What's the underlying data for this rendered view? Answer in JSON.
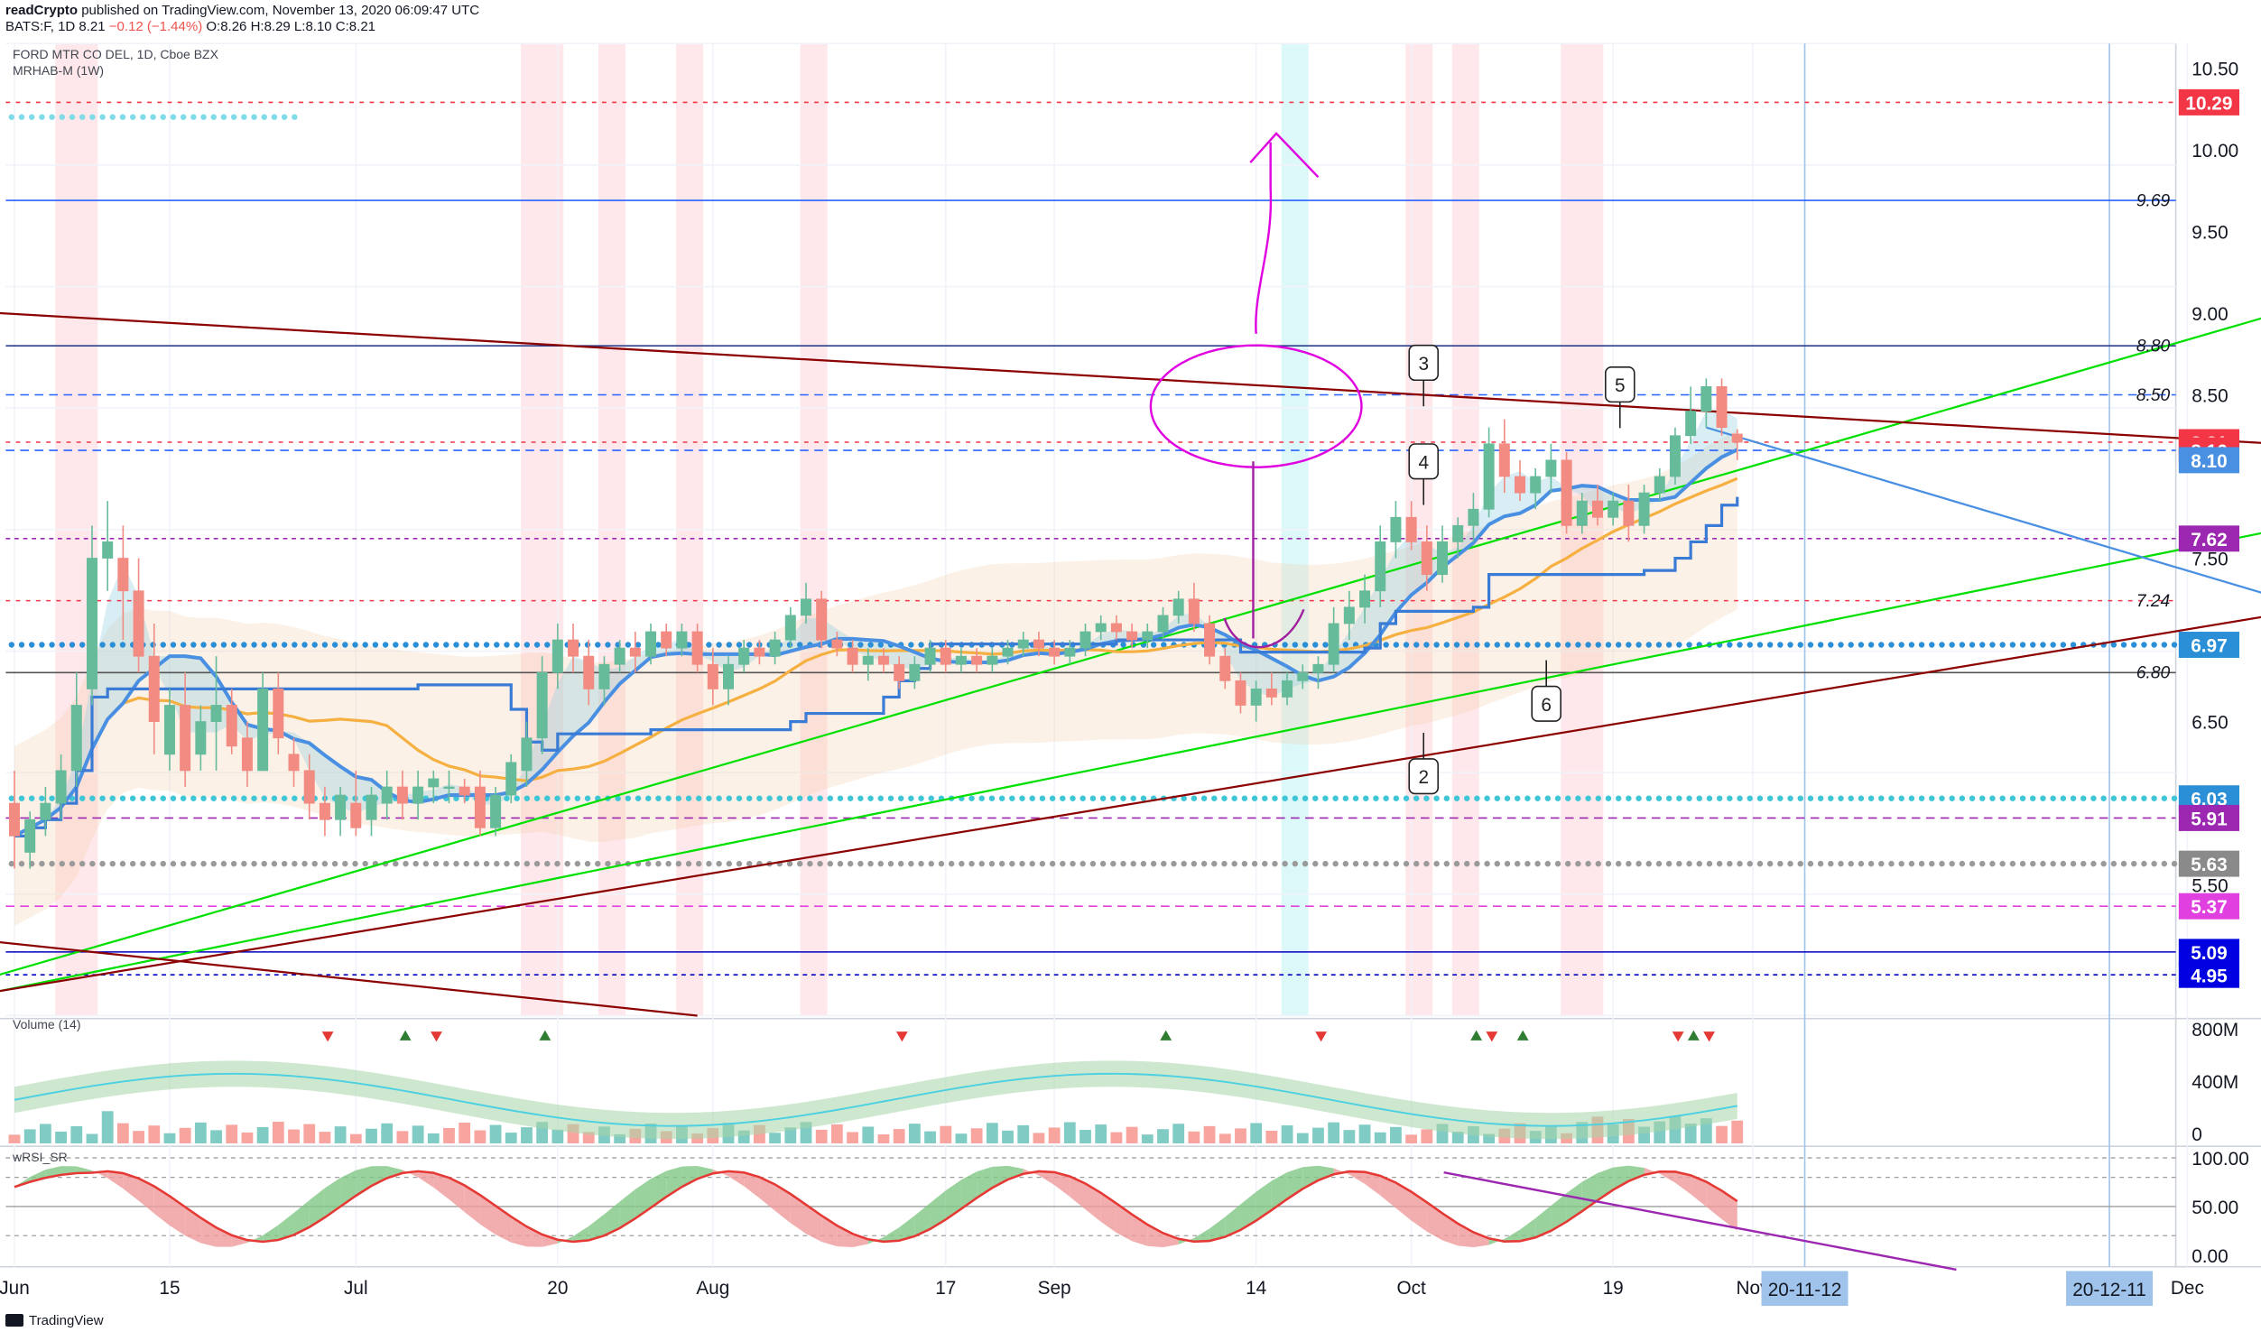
{
  "header": {
    "publisher": "readCrypto",
    "published_text": "published on TradingView.com, November 13, 2020 06:09:47 UTC",
    "symbol": "BATS:F, 1D",
    "last_price": "8.21",
    "change": "−0.12 (−1.44%)",
    "ohlc": "O:8.26 H:8.29 L:8.10 C:8.21"
  },
  "studies": {
    "main": "FORD MTR CO DEL, 1D, Cboe BZX",
    "indicator": "MRHAB-M (1W)",
    "volume": "Volume (14)",
    "rsi": "wRSI_SR"
  },
  "footer": {
    "brand": "TradingView",
    "icon": "tradingview-logo-icon"
  },
  "colors": {
    "up": "#26a69a",
    "down": "#ef5350",
    "blue": "#4a90e2",
    "green_line": "#00e000",
    "maroon_line": "#8b0000",
    "magenta": "#e000e0",
    "purple": "#9c27b0",
    "orange": "#f5b041"
  },
  "chart_data": {
    "type": "candlestick",
    "price_axis": {
      "ticks": [
        "10.50",
        "10.00",
        "9.50",
        "9.00",
        "8.50",
        "7.50",
        "6.50",
        "5.50"
      ],
      "range": [
        4.7,
        10.65
      ]
    },
    "price_labels": [
      {
        "value": 10.29,
        "text": "10.29",
        "bg": "#f23645",
        "fg": "#ffffff"
      },
      {
        "value": 8.21,
        "text": "8.21",
        "bg": "#f23645",
        "fg": "#ffffff"
      },
      {
        "value": 8.16,
        "text": "8.16",
        "bg": "#f23645",
        "fg": "#ffffff"
      },
      {
        "value": 8.1,
        "text": "8.10",
        "bg": "#4a90e2",
        "fg": "#ffffff"
      },
      {
        "value": 7.62,
        "text": "7.62",
        "bg": "#9c27b0",
        "fg": "#ffffff"
      },
      {
        "value": 6.97,
        "text": "6.97",
        "bg": "#2a8fd6",
        "fg": "#ffffff"
      },
      {
        "value": 6.03,
        "text": "6.03",
        "bg": "#2a8fd6",
        "fg": "#ffffff"
      },
      {
        "value": 5.91,
        "text": "5.91",
        "bg": "#9c27b0",
        "fg": "#ffffff"
      },
      {
        "value": 5.63,
        "text": "5.63",
        "bg": "#8a8a8a",
        "fg": "#ffffff"
      },
      {
        "value": 5.37,
        "text": "5.37",
        "bg": "#e040e0",
        "fg": "#ffffff"
      },
      {
        "value": 5.09,
        "text": "5.09",
        "bg": "#0000e0",
        "fg": "#ffffff"
      },
      {
        "value": 4.95,
        "text": "4.95",
        "bg": "#0000e0",
        "fg": "#ffffff"
      }
    ],
    "level_texts": [
      {
        "value": 9.69,
        "text": "9.69"
      },
      {
        "value": 8.8,
        "text": "8.80"
      },
      {
        "value": 8.5,
        "text": "8.50"
      },
      {
        "value": 7.24,
        "text": "7.24"
      },
      {
        "value": 6.8,
        "text": "6.80"
      }
    ],
    "hlines": [
      {
        "value": 10.29,
        "color": "#f23645",
        "dash": "3,4"
      },
      {
        "value": 9.69,
        "color": "#2962ff",
        "dash": ""
      },
      {
        "value": 8.8,
        "color": "#2c3e8c",
        "dash": ""
      },
      {
        "value": 8.5,
        "color": "#2962ff",
        "dash": "6,4"
      },
      {
        "value": 8.21,
        "color": "#f23645",
        "dash": "3,4"
      },
      {
        "value": 8.16,
        "color": "#2962ff",
        "dash": "6,4"
      },
      {
        "value": 7.62,
        "color": "#9c27b0",
        "dash": "3,3"
      },
      {
        "value": 7.24,
        "color": "#f23645",
        "dash": "3,4"
      },
      {
        "value": 6.97,
        "color": "#2a8fd6",
        "dash": "2,6",
        "dots": true
      },
      {
        "value": 6.8,
        "color": "#555555",
        "dash": ""
      },
      {
        "value": 6.03,
        "color": "#3ec6d6",
        "dash": "2,6",
        "dots": true
      },
      {
        "value": 5.91,
        "color": "#9c27b0",
        "dash": "6,4"
      },
      {
        "value": 5.63,
        "color": "#9a9a9a",
        "dash": "2,6",
        "dots": true
      },
      {
        "value": 5.37,
        "color": "#e040e0",
        "dash": "6,4"
      },
      {
        "value": 5.09,
        "color": "#0000c0",
        "dash": ""
      },
      {
        "value": 4.95,
        "color": "#0000c0",
        "dash": "3,3"
      }
    ],
    "time_axis": {
      "labels": [
        "Jun",
        "15",
        "Jul",
        "20",
        "Aug",
        "17",
        "Sep",
        "14",
        "Oct",
        "19",
        "Nov",
        "Dec"
      ],
      "positions_day_index": [
        0,
        10,
        22,
        35,
        45,
        60,
        67,
        80,
        90,
        103,
        112,
        140
      ],
      "highlighted": [
        "20-11-12",
        "20-12-11"
      ]
    },
    "trendlines": [
      {
        "name": "green-upper",
        "from": [
          -1,
          4.95
        ],
        "to": [
          155,
          9.25
        ],
        "color": "#00e000"
      },
      {
        "name": "green-lower",
        "from": [
          -1,
          4.85
        ],
        "to": [
          155,
          7.85
        ],
        "color": "#00e000"
      },
      {
        "name": "maroon-upper",
        "from": [
          -1,
          9.0
        ],
        "to": [
          155,
          8.15
        ],
        "color": "#8b0000"
      },
      {
        "name": "maroon-lower",
        "from": [
          -1,
          4.85
        ],
        "to": [
          155,
          7.3
        ],
        "color": "#8b0000"
      },
      {
        "name": "maroon-short",
        "from": [
          -1,
          5.15
        ],
        "to": [
          44,
          4.7
        ],
        "color": "#8b0000"
      },
      {
        "name": "blue-falling",
        "from": [
          109,
          8.3
        ],
        "to": [
          155,
          7.0
        ],
        "color": "#4a90e2"
      }
    ],
    "callouts": [
      "2",
      "3",
      "4",
      "5",
      "6"
    ],
    "candles": [
      [
        6.0,
        6.2,
        5.6,
        5.8
      ],
      [
        5.7,
        5.95,
        5.6,
        5.9
      ],
      [
        5.9,
        6.1,
        5.8,
        6.0
      ],
      [
        6.0,
        6.3,
        5.9,
        6.2
      ],
      [
        6.2,
        6.8,
        6.1,
        6.6
      ],
      [
        6.7,
        7.7,
        6.6,
        7.5
      ],
      [
        7.5,
        7.85,
        7.3,
        7.6
      ],
      [
        7.5,
        7.7,
        7.0,
        7.3
      ],
      [
        7.3,
        7.5,
        6.8,
        6.9
      ],
      [
        6.9,
        7.1,
        6.3,
        6.5
      ],
      [
        6.3,
        6.7,
        6.2,
        6.6
      ],
      [
        6.6,
        6.8,
        6.1,
        6.2
      ],
      [
        6.3,
        6.6,
        6.2,
        6.5
      ],
      [
        6.5,
        6.9,
        6.2,
        6.6
      ],
      [
        6.6,
        6.7,
        6.3,
        6.35
      ],
      [
        6.4,
        6.5,
        6.1,
        6.2
      ],
      [
        6.2,
        6.8,
        6.2,
        6.7
      ],
      [
        6.7,
        6.8,
        6.3,
        6.4
      ],
      [
        6.3,
        6.4,
        6.1,
        6.2
      ],
      [
        6.2,
        6.3,
        5.9,
        6.0
      ],
      [
        6.0,
        6.1,
        5.8,
        5.9
      ],
      [
        5.9,
        6.1,
        5.8,
        6.05
      ],
      [
        6.0,
        6.2,
        5.8,
        5.85
      ],
      [
        5.9,
        6.1,
        5.8,
        6.05
      ],
      [
        6.0,
        6.2,
        5.9,
        6.1
      ],
      [
        6.1,
        6.2,
        5.9,
        6.0
      ],
      [
        6.0,
        6.2,
        5.9,
        6.1
      ],
      [
        6.1,
        6.2,
        6.0,
        6.15
      ],
      [
        6.1,
        6.2,
        6.0,
        6.1
      ],
      [
        6.1,
        6.15,
        6.0,
        6.05
      ],
      [
        6.1,
        6.2,
        5.8,
        5.85
      ],
      [
        5.85,
        6.1,
        5.8,
        6.05
      ],
      [
        6.05,
        6.3,
        6.0,
        6.25
      ],
      [
        6.2,
        6.5,
        6.1,
        6.4
      ],
      [
        6.4,
        6.9,
        6.3,
        6.8
      ],
      [
        6.8,
        7.1,
        6.7,
        7.0
      ],
      [
        7.0,
        7.1,
        6.8,
        6.9
      ],
      [
        6.9,
        7.0,
        6.6,
        6.7
      ],
      [
        6.7,
        6.9,
        6.6,
        6.85
      ],
      [
        6.85,
        7.0,
        6.8,
        6.95
      ],
      [
        6.95,
        7.05,
        6.8,
        6.9
      ],
      [
        6.9,
        7.1,
        6.85,
        7.05
      ],
      [
        7.05,
        7.1,
        6.9,
        6.95
      ],
      [
        6.95,
        7.1,
        6.9,
        7.05
      ],
      [
        7.05,
        7.1,
        6.8,
        6.85
      ],
      [
        6.85,
        6.95,
        6.6,
        6.7
      ],
      [
        6.7,
        6.9,
        6.6,
        6.85
      ],
      [
        6.85,
        7.0,
        6.8,
        6.95
      ],
      [
        6.95,
        7.0,
        6.85,
        6.9
      ],
      [
        6.9,
        7.05,
        6.85,
        7.0
      ],
      [
        7.0,
        7.2,
        6.95,
        7.15
      ],
      [
        7.15,
        7.35,
        7.1,
        7.25
      ],
      [
        7.25,
        7.3,
        6.95,
        7.0
      ],
      [
        7.0,
        7.05,
        6.9,
        6.95
      ],
      [
        6.95,
        7.0,
        6.8,
        6.85
      ],
      [
        6.85,
        6.95,
        6.75,
        6.9
      ],
      [
        6.9,
        6.95,
        6.8,
        6.85
      ],
      [
        6.85,
        6.9,
        6.7,
        6.75
      ],
      [
        6.75,
        6.9,
        6.7,
        6.85
      ],
      [
        6.85,
        7.0,
        6.8,
        6.95
      ],
      [
        6.95,
        7.0,
        6.8,
        6.85
      ],
      [
        6.85,
        6.95,
        6.8,
        6.9
      ],
      [
        6.9,
        6.95,
        6.8,
        6.85
      ],
      [
        6.85,
        6.95,
        6.8,
        6.9
      ],
      [
        6.9,
        7.0,
        6.85,
        6.95
      ],
      [
        6.95,
        7.05,
        6.9,
        7.0
      ],
      [
        7.0,
        7.05,
        6.9,
        6.95
      ],
      [
        6.95,
        7.0,
        6.85,
        6.9
      ],
      [
        6.9,
        7.0,
        6.85,
        6.95
      ],
      [
        6.95,
        7.1,
        6.9,
        7.05
      ],
      [
        7.05,
        7.15,
        7.0,
        7.1
      ],
      [
        7.1,
        7.15,
        7.0,
        7.05
      ],
      [
        7.05,
        7.1,
        6.95,
        7.0
      ],
      [
        7.0,
        7.1,
        6.95,
        7.05
      ],
      [
        7.05,
        7.2,
        7.0,
        7.15
      ],
      [
        7.15,
        7.3,
        7.1,
        7.25
      ],
      [
        7.25,
        7.35,
        7.05,
        7.1
      ],
      [
        7.1,
        7.15,
        6.85,
        6.9
      ],
      [
        6.9,
        6.95,
        6.7,
        6.75
      ],
      [
        6.75,
        6.8,
        6.55,
        6.6
      ],
      [
        6.6,
        6.75,
        6.5,
        6.7
      ],
      [
        6.7,
        6.8,
        6.6,
        6.65
      ],
      [
        6.65,
        6.8,
        6.6,
        6.75
      ],
      [
        6.75,
        6.85,
        6.7,
        6.8
      ],
      [
        6.8,
        6.9,
        6.7,
        6.85
      ],
      [
        6.85,
        7.2,
        6.8,
        7.1
      ],
      [
        7.1,
        7.3,
        7.0,
        7.2
      ],
      [
        7.2,
        7.4,
        7.1,
        7.3
      ],
      [
        7.3,
        7.7,
        7.2,
        7.6
      ],
      [
        7.6,
        7.85,
        7.5,
        7.75
      ],
      [
        7.75,
        7.85,
        7.55,
        7.6
      ],
      [
        7.6,
        7.7,
        7.3,
        7.4
      ],
      [
        7.4,
        7.7,
        7.35,
        7.6
      ],
      [
        7.6,
        7.75,
        7.5,
        7.7
      ],
      [
        7.7,
        7.9,
        7.6,
        7.8
      ],
      [
        7.8,
        8.3,
        7.75,
        8.2
      ],
      [
        8.2,
        8.35,
        7.9,
        8.0
      ],
      [
        8.0,
        8.1,
        7.85,
        7.9
      ],
      [
        7.9,
        8.05,
        7.8,
        8.0
      ],
      [
        8.0,
        8.2,
        7.9,
        8.1
      ],
      [
        8.1,
        8.15,
        7.65,
        7.7
      ],
      [
        7.7,
        7.9,
        7.65,
        7.85
      ],
      [
        7.85,
        7.95,
        7.7,
        7.75
      ],
      [
        7.75,
        7.9,
        7.7,
        7.85
      ],
      [
        7.85,
        7.95,
        7.6,
        7.7
      ],
      [
        7.7,
        7.95,
        7.65,
        7.9
      ],
      [
        7.9,
        8.05,
        7.85,
        8.0
      ],
      [
        8.0,
        8.3,
        7.95,
        8.25
      ],
      [
        8.25,
        8.55,
        8.2,
        8.4
      ],
      [
        8.4,
        8.6,
        8.3,
        8.55
      ],
      [
        8.55,
        8.6,
        8.25,
        8.3
      ],
      [
        8.26,
        8.29,
        8.1,
        8.21
      ]
    ],
    "volume_axis": {
      "ticks": [
        "800M",
        "400M",
        "0"
      ]
    },
    "rsi_axis": {
      "ticks": [
        "100.00",
        "50.00",
        "0.00"
      ]
    }
  }
}
